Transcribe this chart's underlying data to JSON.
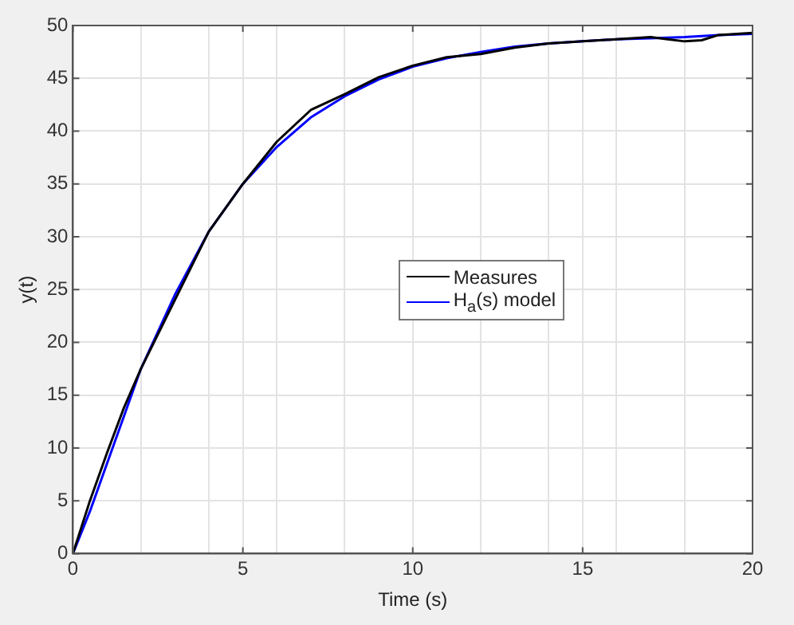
{
  "chart_data": {
    "type": "line",
    "xlabel": "Time (s)",
    "ylabel": "y(t)",
    "xlim": [
      0,
      20
    ],
    "ylim": [
      0,
      50
    ],
    "xticks": [
      0,
      {
        "value": 2,
        "label": null
      },
      {
        "value": 4,
        "label": null
      },
      5,
      {
        "value": 6,
        "label": null
      },
      {
        "value": 8,
        "label": null
      },
      10,
      {
        "value": 12,
        "label": null
      },
      {
        "value": 14,
        "label": null
      },
      15,
      {
        "value": 16,
        "label": null
      },
      {
        "value": 18,
        "label": null
      },
      20
    ],
    "yticks": [
      0,
      5,
      10,
      15,
      20,
      25,
      30,
      35,
      40,
      45,
      50
    ],
    "grid": true,
    "legend": "right",
    "marker": "none",
    "line_style": "solid",
    "series": [
      {
        "name": "Measures",
        "color": "#000000",
        "x": [
          0,
          0.5,
          1,
          1.5,
          2,
          3,
          4,
          5,
          6,
          7,
          8,
          9,
          10,
          11,
          12,
          13,
          14,
          15,
          16,
          17,
          17.5,
          18,
          18.5,
          19,
          20
        ],
        "values": [
          0,
          5,
          9.5,
          13.8,
          17.5,
          24,
          30.5,
          35,
          39,
          42,
          43.5,
          45.1,
          46.2,
          47,
          47.3,
          47.9,
          48.3,
          48.5,
          48.7,
          48.9,
          48.7,
          48.5,
          48.6,
          49.1,
          49.3
        ]
      },
      {
        "name": "H$_{a}$(s) model",
        "color": "#0000ff",
        "x": [
          0,
          0.5,
          1,
          1.5,
          2,
          3,
          4,
          5,
          6,
          7,
          8,
          9,
          10,
          11,
          12,
          13,
          14,
          15,
          16,
          17,
          18,
          19,
          20
        ],
        "values": [
          0,
          4,
          8.5,
          13,
          17.5,
          24.5,
          30.5,
          35,
          38.5,
          41.3,
          43.3,
          44.9,
          46.1,
          46.9,
          47.5,
          48,
          48.3,
          48.5,
          48.7,
          48.8,
          48.9,
          49.1,
          49.2
        ]
      }
    ]
  }
}
